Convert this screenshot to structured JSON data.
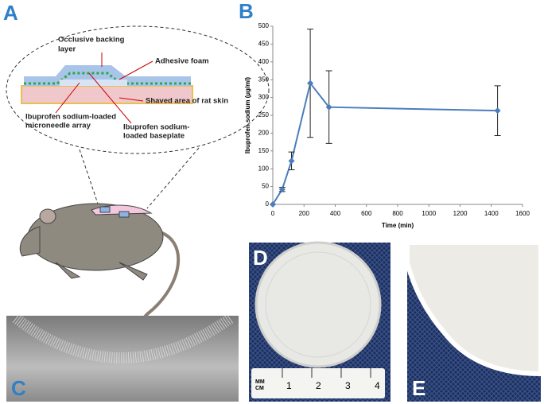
{
  "panels": {
    "a": "A",
    "b": "B",
    "c": "C",
    "d": "D",
    "e": "E"
  },
  "diagram": {
    "backing": [
      "Occlusive backing",
      "layer"
    ],
    "foam": "Adhesive foam",
    "skin": "Shaved area of rat skin",
    "array": [
      "Ibuprofen sodium-loaded",
      "microneedle array"
    ],
    "baseplate": [
      "Ibuprofen sodium-",
      "loaded baseplate"
    ]
  },
  "ruler": {
    "unit": [
      "MM",
      "CM"
    ],
    "numbers": [
      "1",
      "2",
      "3",
      "4"
    ]
  },
  "chart_data": {
    "type": "line",
    "x_label": "Time (min)",
    "y_label": "Ibuprofen sodium (µg/ml)",
    "x": [
      0,
      60,
      120,
      240,
      360,
      1440
    ],
    "values": [
      0,
      42,
      122,
      340,
      273,
      263
    ],
    "errors": [
      0,
      6,
      25,
      152,
      102,
      70
    ],
    "color": "#4a7ebb",
    "xlim": [
      0,
      1600
    ],
    "xticks": [
      0,
      200,
      400,
      600,
      800,
      1000,
      1200,
      1400,
      1600
    ],
    "ylim": [
      0,
      500
    ],
    "yticks": [
      0,
      50,
      100,
      150,
      200,
      250,
      300,
      350,
      400,
      450,
      500
    ]
  }
}
